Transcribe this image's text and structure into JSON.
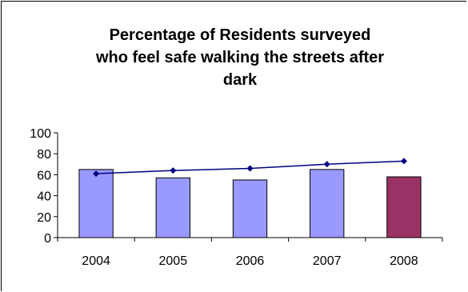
{
  "chart_data": {
    "type": "bar",
    "title_lines": [
      "Percentage of Residents surveyed",
      "who feel safe walking the streets after",
      "dark"
    ],
    "categories": [
      "2004",
      "2005",
      "2006",
      "2007",
      "2008"
    ],
    "series": [
      {
        "kind": "bar",
        "values": [
          65,
          57,
          55,
          65,
          58
        ],
        "colors": [
          "#9999FF",
          "#9999FF",
          "#9999FF",
          "#9999FF",
          "#993366"
        ]
      },
      {
        "kind": "line",
        "values": [
          61,
          64,
          66,
          70,
          73
        ],
        "color": "#000080"
      }
    ],
    "ylim": [
      0,
      100
    ],
    "y_ticks": [
      "0",
      "20",
      "40",
      "60",
      "80",
      "100"
    ],
    "grid": false,
    "legend": "none"
  }
}
